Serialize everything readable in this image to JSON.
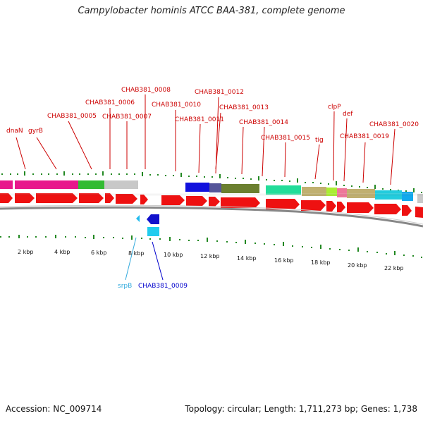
{
  "title": "Campylobacter hominis ATCC BAA-381, complete genome",
  "footer": {
    "accession": "Accession: NC_009714",
    "summary": "Topology: circular; Length: 1,711,273 bp; Genes: 1,738"
  },
  "gene_labels": [
    {
      "id": "dnaN",
      "text": "dnaN"
    },
    {
      "id": "gyrB",
      "text": "gyrB"
    },
    {
      "id": "0005",
      "text": "CHAB381_0005"
    },
    {
      "id": "0006",
      "text": "CHAB381_0006"
    },
    {
      "id": "0007",
      "text": "CHAB381_0007"
    },
    {
      "id": "0008",
      "text": "CHAB381_0008"
    },
    {
      "id": "0010",
      "text": "CHAB381_0010"
    },
    {
      "id": "0011",
      "text": "CHAB381_0011"
    },
    {
      "id": "0012",
      "text": "CHAB381_0012"
    },
    {
      "id": "0013",
      "text": "CHAB381_0013"
    },
    {
      "id": "0014",
      "text": "CHAB381_0014"
    },
    {
      "id": "0015",
      "text": "CHAB381_0015"
    },
    {
      "id": "tig",
      "text": "tig"
    },
    {
      "id": "clpP",
      "text": "clpP"
    },
    {
      "id": "def",
      "text": "def"
    },
    {
      "id": "0019",
      "text": "CHAB381_0019"
    },
    {
      "id": "0020",
      "text": "CHAB381_0020"
    },
    {
      "id": "srpB",
      "text": "srpB"
    },
    {
      "id": "0009",
      "text": "CHAB381_0009"
    }
  ],
  "scale_ticks": [
    "2 kbp",
    "4 kbp",
    "6 kbp",
    "8 kbp",
    "10 kbp",
    "12 kbp",
    "14 kbp",
    "16 kbp",
    "18 kbp",
    "20 kbp",
    "22 kbp"
  ],
  "colors": {
    "gene_red": "#ee1111",
    "label_red": "#cc0000",
    "label_blue": "#0000cc",
    "label_cyan": "#33aadd",
    "tick_green": "#228822",
    "backbone": "#888888"
  }
}
